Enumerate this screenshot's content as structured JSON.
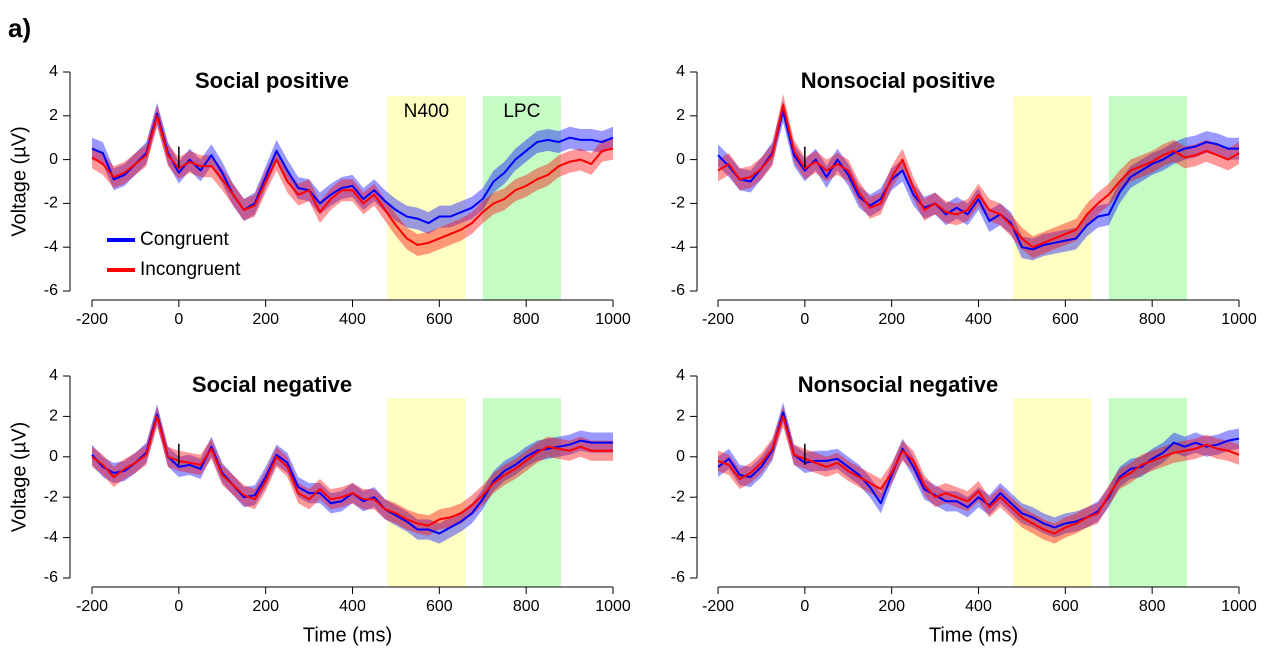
{
  "figure_label": "a)",
  "chart_data": [
    {
      "type": "line",
      "title": "Social positive",
      "ylabel": "Voltage (µV)",
      "legend": "left",
      "x": [
        -200,
        -175,
        -150,
        -125,
        -100,
        -75,
        -50,
        -25,
        0,
        25,
        50,
        75,
        100,
        125,
        150,
        175,
        200,
        225,
        250,
        275,
        300,
        325,
        350,
        375,
        400,
        425,
        450,
        475,
        500,
        525,
        550,
        575,
        600,
        625,
        650,
        675,
        700,
        725,
        750,
        775,
        800,
        825,
        850,
        875,
        900,
        925,
        950,
        975,
        1000
      ],
      "xlim": [
        -200,
        1000
      ],
      "ylim": [
        -6,
        4
      ],
      "xticks": [
        -200,
        0,
        200,
        400,
        600,
        800,
        1000
      ],
      "yticks": [
        -6,
        -4,
        -2,
        0,
        2,
        4
      ],
      "onset": 0,
      "regions": [
        {
          "label": "N400",
          "xlim": [
            480,
            660
          ],
          "top": 2.9,
          "color": "#ffffc4"
        },
        {
          "label": "LPC",
          "xlim": [
            700,
            880
          ],
          "top": 2.9,
          "color": "#c4fcc4"
        }
      ],
      "series": [
        {
          "name": "Congruent",
          "color": "#0000ff",
          "error": 0.5,
          "values": [
            0.5,
            0.3,
            -0.9,
            -0.7,
            -0.2,
            0.3,
            2.1,
            0.3,
            -0.6,
            0.0,
            -0.5,
            0.2,
            -0.6,
            -1.6,
            -2.3,
            -2.0,
            -0.8,
            0.4,
            -0.5,
            -1.3,
            -1.4,
            -2.0,
            -1.6,
            -1.3,
            -1.2,
            -1.8,
            -1.4,
            -1.9,
            -2.3,
            -2.6,
            -2.7,
            -2.9,
            -2.6,
            -2.6,
            -2.4,
            -2.2,
            -1.8,
            -1.0,
            -0.6,
            0.0,
            0.4,
            0.8,
            0.9,
            0.8,
            1.0,
            0.9,
            0.9,
            0.8,
            1.0
          ]
        },
        {
          "name": "Incongruent",
          "color": "#ff0000",
          "error": 0.5,
          "values": [
            0.1,
            -0.2,
            -0.8,
            -0.6,
            -0.2,
            0.2,
            2.0,
            0.2,
            -0.4,
            -0.1,
            -0.3,
            -0.3,
            -0.9,
            -1.6,
            -2.3,
            -2.1,
            -1.0,
            0.0,
            -1.0,
            -1.6,
            -1.4,
            -2.4,
            -1.8,
            -1.4,
            -1.4,
            -2.0,
            -1.6,
            -2.3,
            -3.0,
            -3.6,
            -3.9,
            -3.8,
            -3.6,
            -3.4,
            -3.2,
            -2.9,
            -2.4,
            -2.0,
            -1.8,
            -1.4,
            -1.2,
            -0.9,
            -0.7,
            -0.3,
            -0.1,
            0.0,
            -0.2,
            0.4,
            0.5
          ]
        }
      ]
    },
    {
      "type": "line",
      "title": "Nonsocial positive",
      "x": [
        -200,
        -175,
        -150,
        -125,
        -100,
        -75,
        -50,
        -25,
        0,
        25,
        50,
        75,
        100,
        125,
        150,
        175,
        200,
        225,
        250,
        275,
        300,
        325,
        350,
        375,
        400,
        425,
        450,
        475,
        500,
        525,
        550,
        575,
        600,
        625,
        650,
        675,
        700,
        725,
        750,
        775,
        800,
        825,
        850,
        875,
        900,
        925,
        950,
        975,
        1000
      ],
      "xlim": [
        -200,
        1000
      ],
      "ylim": [
        -6,
        4
      ],
      "xticks": [
        -200,
        0,
        200,
        400,
        600,
        800,
        1000
      ],
      "yticks": [
        -6,
        -4,
        -2,
        0,
        2,
        4
      ],
      "onset": 0,
      "regions": [
        {
          "xlim": [
            480,
            660
          ],
          "top": 2.9,
          "color": "#ffffc4"
        },
        {
          "xlim": [
            700,
            880
          ],
          "top": 2.9,
          "color": "#c4fcc4"
        }
      ],
      "series": [
        {
          "color": "#0000ff",
          "error": 0.5,
          "values": [
            0.2,
            -0.3,
            -0.9,
            -1.0,
            -0.4,
            0.3,
            2.2,
            0.2,
            -0.5,
            0.0,
            -0.8,
            0.0,
            -0.7,
            -1.7,
            -2.1,
            -1.8,
            -0.9,
            -0.5,
            -1.6,
            -2.2,
            -2.0,
            -2.5,
            -2.2,
            -2.5,
            -1.8,
            -2.8,
            -2.5,
            -2.9,
            -4.0,
            -4.1,
            -3.9,
            -3.8,
            -3.7,
            -3.6,
            -3.0,
            -2.6,
            -2.5,
            -1.5,
            -0.8,
            -0.5,
            -0.2,
            0.0,
            0.3,
            0.5,
            0.6,
            0.8,
            0.7,
            0.5,
            0.5
          ]
        },
        {
          "color": "#ff0000",
          "error": 0.5,
          "values": [
            -0.5,
            -0.2,
            -0.9,
            -0.8,
            -0.4,
            0.2,
            2.5,
            0.4,
            -0.4,
            -0.1,
            -0.5,
            -0.2,
            -0.5,
            -1.5,
            -2.2,
            -2.0,
            -0.8,
            0.0,
            -1.3,
            -2.3,
            -2.0,
            -2.4,
            -2.5,
            -2.3,
            -1.6,
            -2.3,
            -2.5,
            -3.0,
            -3.6,
            -4.0,
            -3.8,
            -3.6,
            -3.4,
            -3.2,
            -2.5,
            -2.0,
            -1.6,
            -1.0,
            -0.5,
            -0.3,
            -0.1,
            0.2,
            0.4,
            0.1,
            0.2,
            0.4,
            0.2,
            0.0,
            0.3
          ]
        }
      ]
    },
    {
      "type": "line",
      "title": "Social negative",
      "ylabel": "Voltage (µV)",
      "xlabel": "Time (ms)",
      "x": [
        -200,
        -175,
        -150,
        -125,
        -100,
        -75,
        -50,
        -25,
        0,
        25,
        50,
        75,
        100,
        125,
        150,
        175,
        200,
        225,
        250,
        275,
        300,
        325,
        350,
        375,
        400,
        425,
        450,
        475,
        500,
        525,
        550,
        575,
        600,
        625,
        650,
        675,
        700,
        725,
        750,
        775,
        800,
        825,
        850,
        875,
        900,
        925,
        950,
        975,
        1000
      ],
      "xlim": [
        -200,
        1000
      ],
      "ylim": [
        -6,
        4
      ],
      "xticks": [
        -200,
        0,
        200,
        400,
        600,
        800,
        1000
      ],
      "yticks": [
        -6,
        -4,
        -2,
        0,
        2,
        4
      ],
      "onset": 0,
      "regions": [
        {
          "xlim": [
            480,
            660
          ],
          "top": 2.9,
          "color": "#ffffc4"
        },
        {
          "xlim": [
            700,
            880
          ],
          "top": 2.9,
          "color": "#c4fcc4"
        }
      ],
      "series": [
        {
          "color": "#0000ff",
          "error": 0.5,
          "values": [
            0.1,
            -0.5,
            -0.8,
            -0.7,
            -0.3,
            0.2,
            2.1,
            0.0,
            -0.5,
            -0.4,
            -0.6,
            0.5,
            -0.8,
            -1.4,
            -2.0,
            -1.9,
            -1.0,
            0.1,
            -0.3,
            -1.5,
            -1.8,
            -1.8,
            -2.3,
            -2.2,
            -1.8,
            -2.2,
            -2.0,
            -2.6,
            -2.9,
            -3.2,
            -3.6,
            -3.6,
            -3.8,
            -3.5,
            -3.2,
            -2.8,
            -2.1,
            -1.2,
            -0.7,
            -0.4,
            0.0,
            0.3,
            0.4,
            0.5,
            0.6,
            0.8,
            0.7,
            0.7,
            0.7
          ]
        },
        {
          "color": "#ff0000",
          "error": 0.5,
          "values": [
            0.0,
            -0.4,
            -1.0,
            -0.6,
            -0.3,
            0.1,
            2.0,
            0.0,
            -0.2,
            -0.3,
            -0.4,
            0.4,
            -0.9,
            -1.4,
            -1.9,
            -2.1,
            -1.2,
            0.0,
            -0.5,
            -1.8,
            -2.1,
            -1.6,
            -2.1,
            -2.0,
            -1.8,
            -2.1,
            -2.1,
            -2.6,
            -2.8,
            -3.1,
            -3.3,
            -3.4,
            -3.1,
            -3.0,
            -2.8,
            -2.4,
            -1.9,
            -1.3,
            -0.9,
            -0.6,
            -0.2,
            0.2,
            0.5,
            0.4,
            0.3,
            0.5,
            0.3,
            0.3,
            0.3
          ]
        }
      ]
    },
    {
      "type": "line",
      "title": "Nonsocial negative",
      "xlabel": "Time (ms)",
      "x": [
        -200,
        -175,
        -150,
        -125,
        -100,
        -75,
        -50,
        -25,
        0,
        25,
        50,
        75,
        100,
        125,
        150,
        175,
        200,
        225,
        250,
        275,
        300,
        325,
        350,
        375,
        400,
        425,
        450,
        475,
        500,
        525,
        550,
        575,
        600,
        625,
        650,
        675,
        700,
        725,
        750,
        775,
        800,
        825,
        850,
        875,
        900,
        925,
        950,
        975,
        1000
      ],
      "xlim": [
        -200,
        1000
      ],
      "ylim": [
        -6,
        4
      ],
      "xticks": [
        -200,
        0,
        200,
        400,
        600,
        800,
        1000
      ],
      "yticks": [
        -6,
        -4,
        -2,
        0,
        2,
        4
      ],
      "onset": 0,
      "regions": [
        {
          "xlim": [
            480,
            660
          ],
          "top": 2.9,
          "color": "#ffffc4"
        },
        {
          "xlim": [
            700,
            880
          ],
          "top": 2.9,
          "color": "#c4fcc4"
        }
      ],
      "series": [
        {
          "color": "#0000ff",
          "error": 0.5,
          "values": [
            -0.5,
            -0.1,
            -0.9,
            -1.0,
            -0.5,
            0.3,
            2.2,
            0.1,
            -0.3,
            -0.2,
            -0.2,
            -0.1,
            -0.5,
            -0.9,
            -1.5,
            -2.3,
            -0.9,
            0.4,
            -0.5,
            -1.6,
            -1.9,
            -2.2,
            -2.2,
            -2.5,
            -2.0,
            -2.4,
            -1.8,
            -2.3,
            -2.8,
            -3.0,
            -3.3,
            -3.5,
            -3.3,
            -3.2,
            -3.0,
            -2.7,
            -2.0,
            -1.0,
            -0.6,
            -0.5,
            -0.1,
            0.2,
            0.7,
            0.5,
            0.7,
            0.5,
            0.6,
            0.8,
            0.9
          ]
        },
        {
          "color": "#ff0000",
          "error": 0.5,
          "values": [
            -0.2,
            -0.4,
            -1.1,
            -0.8,
            -0.3,
            0.4,
            2.0,
            0.1,
            -0.1,
            -0.3,
            -0.5,
            -0.3,
            -0.7,
            -1.0,
            -1.3,
            -1.6,
            -0.8,
            0.3,
            -0.2,
            -1.4,
            -2.0,
            -1.8,
            -2.0,
            -2.2,
            -1.7,
            -2.5,
            -2.0,
            -2.5,
            -3.0,
            -3.3,
            -3.6,
            -3.8,
            -3.5,
            -3.3,
            -3.0,
            -2.8,
            -1.9,
            -1.1,
            -0.8,
            -0.4,
            -0.2,
            0.0,
            0.2,
            0.3,
            0.4,
            0.6,
            0.4,
            0.3,
            0.1
          ]
        }
      ]
    }
  ]
}
